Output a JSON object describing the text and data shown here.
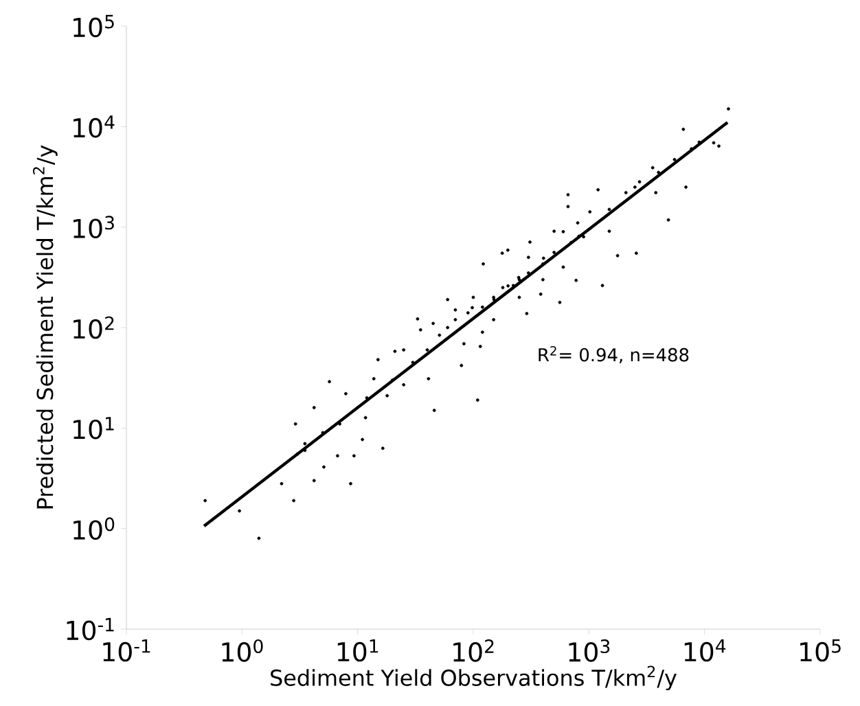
{
  "chart_data": {
    "type": "scatter",
    "xlabel": "Sediment Yield Observations T/km$^{2}$/y",
    "ylabel": "Predicted Sediment Yield  T/km$^{2}$/y",
    "annotations": [
      "R$^{2}$= 0.94,  n=488"
    ],
    "log": "xy",
    "xlim": [
      0.1,
      100000
    ],
    "ylim": [
      0.1,
      100000
    ],
    "xticks": [
      {
        "value": 0.1,
        "label": "10$^{-1}$"
      },
      {
        "value": 1,
        "label": "10$^{0}$"
      },
      {
        "value": 10,
        "label": "10$^{1}$"
      },
      {
        "value": 100,
        "label": "10$^{2}$"
      },
      {
        "value": 1000,
        "label": "10$^{3}$"
      },
      {
        "value": 10000,
        "label": "10$^{4}$"
      },
      {
        "value": 100000,
        "label": "10$^{5}$"
      }
    ],
    "yticks": [
      {
        "value": 0.1,
        "label": "10$^{-1}$"
      },
      {
        "value": 1,
        "label": "10$^{0}$"
      },
      {
        "value": 10,
        "label": "10$^{1}$"
      },
      {
        "value": 100,
        "label": "10$^{2}$"
      },
      {
        "value": 1000,
        "label": "10$^{3}$"
      },
      {
        "value": 10000,
        "label": "10$^{4}$"
      },
      {
        "value": 100000,
        "label": "10$^{5}$"
      }
    ],
    "marker": "circle",
    "series": [
      {
        "color": "#000000",
        "x": [
          0.48,
          0.95,
          1.4,
          2.2,
          2.8,
          2.9,
          3.5,
          4.2,
          4.2,
          5.7,
          5.1,
          6.7,
          7.9,
          8.7,
          9.3,
          11,
          11.7,
          13.8,
          16.5,
          18,
          15,
          21,
          25,
          33,
          35,
          46,
          41,
          51,
          60,
          79,
          83,
          98,
          109,
          115,
          122,
          151,
          178,
          199,
          222,
          247,
          290,
          309,
          383,
          405,
          500,
          560,
          660,
          660,
          775,
          820,
          1020,
          1200,
          1310,
          1500,
          1770,
          2090,
          2570,
          2740,
          3560,
          3790,
          4870,
          5500,
          6560,
          6900,
          7700,
          12000,
          13300,
          16100,
          3,
          3.5,
          5,
          7,
          12,
          20,
          30,
          40,
          60,
          70,
          90,
          120,
          150,
          200,
          250,
          300,
          400,
          500,
          700,
          900,
          1500,
          2500,
          4000,
          9000,
          25,
          45,
          70,
          100,
          180,
          300,
          600,
          800,
          150,
          250,
          400,
          600,
          120
        ],
        "values": [
          1.9,
          1.5,
          0.8,
          2.8,
          1.9,
          11,
          7,
          3,
          16,
          29,
          4.1,
          5.3,
          22,
          2.8,
          5.3,
          7.7,
          12.7,
          31,
          6.3,
          21,
          48,
          58,
          27,
          122,
          95,
          15,
          31,
          84,
          190,
          42,
          69,
          158,
          19,
          65,
          430,
          190,
          550,
          590,
          262,
          315,
          138,
          710,
          215,
          490,
          910,
          178,
          2100,
          1600,
          295,
          810,
          1420,
          2350,
          262,
          910,
          520,
          2200,
          550,
          2820,
          3900,
          2200,
          1180,
          4700,
          9400,
          2500,
          6000,
          6900,
          6400,
          15000,
          5.5,
          6,
          9,
          11,
          20,
          30,
          45,
          60,
          100,
          120,
          140,
          160,
          200,
          260,
          300,
          350,
          430,
          560,
          700,
          800,
          1500,
          2500,
          3500,
          7000,
          60,
          110,
          150,
          200,
          250,
          500,
          900,
          1100,
          120,
          200,
          300,
          400,
          90
        ]
      },
      {
        "type": "line",
        "color": "#000000",
        "marker": "none",
        "line_style": "solid",
        "x": [
          0.47,
          15800
        ],
        "values": [
          1.06,
          11000
        ]
      }
    ]
  }
}
